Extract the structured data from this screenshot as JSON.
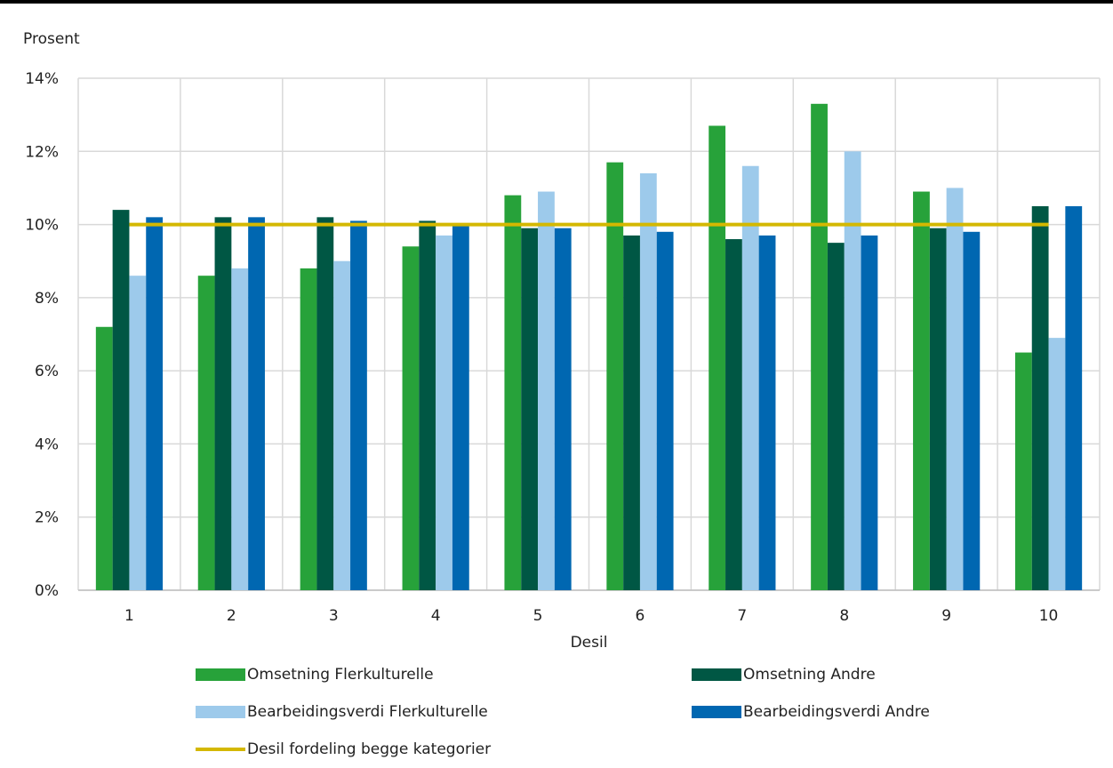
{
  "chart_data": {
    "type": "bar",
    "ylabel": "Prosent",
    "xlabel": "Desil",
    "categories": [
      "1",
      "2",
      "3",
      "4",
      "5",
      "6",
      "7",
      "8",
      "9",
      "10"
    ],
    "ylim": [
      0,
      14
    ],
    "yticks": [
      0,
      2,
      4,
      6,
      8,
      10,
      12,
      14
    ],
    "ytick_labels": [
      "0%",
      "2%",
      "4%",
      "6%",
      "8%",
      "10%",
      "12%",
      "14%"
    ],
    "grid": true,
    "legend_position": "bottom",
    "series": [
      {
        "name": "Omsetning Flerkulturelle",
        "color": "#27a23a",
        "values": [
          7.2,
          8.6,
          8.8,
          9.4,
          10.8,
          11.7,
          12.7,
          13.3,
          10.9,
          6.5
        ]
      },
      {
        "name": "Omsetning Andre",
        "color": "#005744",
        "values": [
          10.4,
          10.2,
          10.2,
          10.1,
          9.9,
          9.7,
          9.6,
          9.5,
          9.9,
          10.5
        ]
      },
      {
        "name": "Bearbeidingsverdi Flerkulturelle",
        "color": "#9dcaeb",
        "values": [
          8.6,
          8.8,
          9.0,
          9.7,
          10.9,
          11.4,
          11.6,
          12.0,
          11.0,
          6.9
        ]
      },
      {
        "name": "Bearbeidingsverdi Andre",
        "color": "#0067b1",
        "values": [
          10.2,
          10.2,
          10.1,
          10.0,
          9.9,
          9.8,
          9.7,
          9.7,
          9.8,
          10.5
        ]
      }
    ],
    "reference_line": {
      "name": "Desil fordeling begge kategorier",
      "value": 10,
      "color": "#d4b800"
    }
  }
}
